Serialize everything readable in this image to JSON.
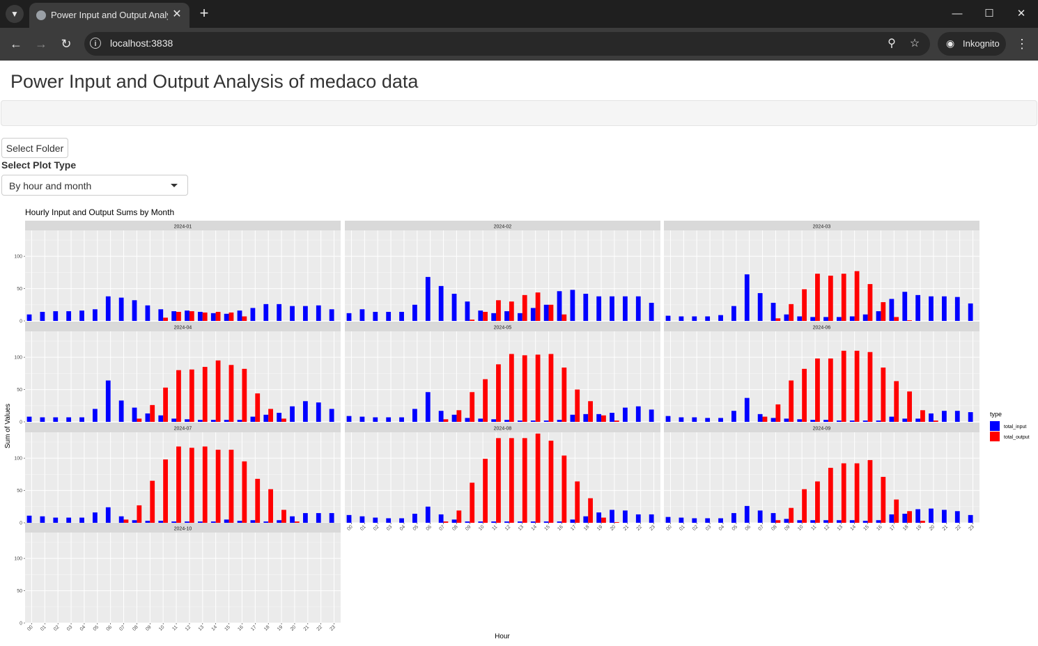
{
  "browser": {
    "tab_title": "Power Input and Output Analysis of medaco data",
    "url": "localhost:3838",
    "incognito_label": "Inkognito",
    "icons": {
      "tab_list": "chevron-down-icon",
      "favicon": "globe-icon",
      "close_tab": "close-icon",
      "new_tab": "plus-icon",
      "back": "arrow-left-icon",
      "forward": "arrow-right-icon",
      "reload": "reload-icon",
      "site_info": "info-icon",
      "zoom": "zoom-icon",
      "bookmark": "star-icon",
      "incognito": "incognito-icon",
      "menu": "more-vertical-icon"
    }
  },
  "page": {
    "title": "Power Input and Output Analysis of medaco data",
    "select_folder_label": "Select Folder",
    "plot_type_label": "Select Plot Type",
    "plot_type_value": "By hour and month"
  },
  "chart_data": {
    "type": "bar",
    "title": "Hourly Input and Output Sums by Month",
    "xlabel": "Hour",
    "ylabel": "Sum of Values",
    "ylim": [
      0,
      140
    ],
    "yticks": [
      0,
      50,
      100
    ],
    "categories": [
      "00",
      "01",
      "02",
      "03",
      "04",
      "05",
      "06",
      "07",
      "08",
      "09",
      "10",
      "11",
      "12",
      "13",
      "14",
      "15",
      "16",
      "17",
      "18",
      "19",
      "20",
      "21",
      "22",
      "23"
    ],
    "legend": {
      "title": "type",
      "placement": "right"
    },
    "colors": {
      "total_input": "#0000ff",
      "total_output": "#ff0000",
      "panel_bg": "#ebebeb",
      "strip_bg": "#d9d9d9"
    },
    "panels": [
      {
        "month": "2024-01",
        "series": [
          {
            "name": "total_input",
            "values": [
              10,
              14,
              15,
              15,
              16,
              18,
              38,
              36,
              32,
              24,
              18,
              15,
              16,
              14,
              12,
              11,
              16,
              20,
              26,
              26,
              23,
              23,
              24,
              18
            ]
          },
          {
            "name": "total_output",
            "values": [
              0,
              0,
              0,
              0,
              0,
              0,
              0,
              0,
              0,
              0,
              5,
              14,
              15,
              13,
              14,
              13,
              7,
              0,
              0,
              0,
              0,
              0,
              0,
              0
            ]
          }
        ]
      },
      {
        "month": "2024-02",
        "series": [
          {
            "name": "total_input",
            "values": [
              12,
              18,
              14,
              14,
              14,
              25,
              68,
              54,
              42,
              30,
              16,
              12,
              15,
              12,
              20,
              25,
              46,
              48,
              42,
              38,
              38,
              38,
              38,
              28
            ]
          },
          {
            "name": "total_output",
            "values": [
              0,
              0,
              0,
              0,
              0,
              0,
              0,
              0,
              0,
              2,
              14,
              32,
              30,
              40,
              44,
              25,
              10,
              0,
              0,
              0,
              0,
              0,
              0,
              0
            ]
          }
        ]
      },
      {
        "month": "2024-03",
        "series": [
          {
            "name": "total_input",
            "values": [
              8,
              7,
              7,
              7,
              9,
              23,
              72,
              43,
              28,
              10,
              7,
              6,
              6,
              6,
              7,
              10,
              15,
              34,
              45,
              40,
              38,
              38,
              37,
              27
            ]
          },
          {
            "name": "total_output",
            "values": [
              0,
              0,
              0,
              0,
              0,
              0,
              0,
              0,
              4,
              26,
              49,
              73,
              70,
              73,
              77,
              57,
              29,
              6,
              1,
              0,
              0,
              0,
              0,
              0
            ]
          }
        ]
      },
      {
        "month": "2024-04",
        "series": [
          {
            "name": "total_input",
            "values": [
              8,
              7,
              7,
              7,
              7,
              20,
              64,
              33,
              22,
              13,
              10,
              5,
              4,
              3,
              3,
              3,
              3,
              8,
              11,
              14,
              24,
              32,
              30,
              20
            ]
          },
          {
            "name": "total_output",
            "values": [
              0,
              0,
              0,
              0,
              0,
              0,
              0,
              0,
              5,
              26,
              53,
              80,
              81,
              85,
              95,
              88,
              82,
              44,
              20,
              5,
              0,
              0,
              0,
              0
            ]
          }
        ]
      },
      {
        "month": "2024-05",
        "series": [
          {
            "name": "total_input",
            "values": [
              9,
              8,
              7,
              7,
              7,
              20,
              46,
              17,
              11,
              6,
              5,
              4,
              3,
              2,
              2,
              2,
              3,
              11,
              12,
              12,
              14,
              22,
              24,
              19
            ]
          },
          {
            "name": "total_output",
            "values": [
              0,
              0,
              0,
              0,
              0,
              0,
              0,
              4,
              18,
              46,
              66,
              89,
              105,
              103,
              104,
              105,
              84,
              50,
              32,
              10,
              2,
              0,
              0,
              0
            ]
          }
        ]
      },
      {
        "month": "2024-06",
        "series": [
          {
            "name": "total_input",
            "values": [
              9,
              7,
              7,
              6,
              6,
              17,
              37,
              12,
              6,
              5,
              4,
              3,
              3,
              2,
              2,
              2,
              2,
              8,
              5,
              5,
              13,
              17,
              17,
              15
            ]
          },
          {
            "name": "total_output",
            "values": [
              0,
              0,
              0,
              0,
              0,
              0,
              0,
              8,
              27,
              64,
              82,
              98,
              98,
              110,
              110,
              108,
              84,
              63,
              47,
              18,
              2,
              0,
              0,
              0
            ]
          }
        ]
      },
      {
        "month": "2024-07",
        "series": [
          {
            "name": "total_input",
            "values": [
              11,
              10,
              8,
              8,
              8,
              16,
              24,
              10,
              4,
              3,
              3,
              2,
              2,
              2,
              2,
              5,
              3,
              4,
              2,
              4,
              10,
              15,
              15,
              15
            ]
          },
          {
            "name": "total_output",
            "values": [
              0,
              0,
              0,
              0,
              0,
              0,
              0,
              5,
              27,
              65,
              98,
              118,
              116,
              118,
              113,
              113,
              95,
              68,
              52,
              20,
              2,
              0,
              0,
              0
            ]
          }
        ]
      },
      {
        "month": "2024-08",
        "series": [
          {
            "name": "total_input",
            "values": [
              12,
              10,
              8,
              7,
              7,
              14,
              25,
              13,
              5,
              2,
              2,
              2,
              2,
              2,
              2,
              2,
              2,
              5,
              10,
              16,
              20,
              19,
              13,
              13
            ]
          },
          {
            "name": "total_output",
            "values": [
              0,
              0,
              0,
              0,
              0,
              0,
              0,
              2,
              19,
              62,
              99,
              131,
              131,
              131,
              138,
              127,
              104,
              64,
              38,
              8,
              1,
              0,
              0,
              0
            ]
          }
        ]
      },
      {
        "month": "2024-09",
        "series": [
          {
            "name": "total_input",
            "values": [
              9,
              8,
              7,
              7,
              7,
              15,
              26,
              19,
              15,
              6,
              4,
              4,
              4,
              4,
              4,
              3,
              4,
              13,
              14,
              21,
              22,
              20,
              18,
              12
            ]
          },
          {
            "name": "total_output",
            "values": [
              0,
              0,
              0,
              0,
              0,
              0,
              0,
              0,
              4,
              23,
              52,
              64,
              85,
              92,
              92,
              97,
              71,
              36,
              18,
              3,
              0,
              0,
              0,
              0
            ]
          }
        ]
      },
      {
        "month": "2024-10",
        "series": [
          {
            "name": "total_input",
            "values": []
          },
          {
            "name": "total_output",
            "values": []
          }
        ]
      }
    ]
  }
}
